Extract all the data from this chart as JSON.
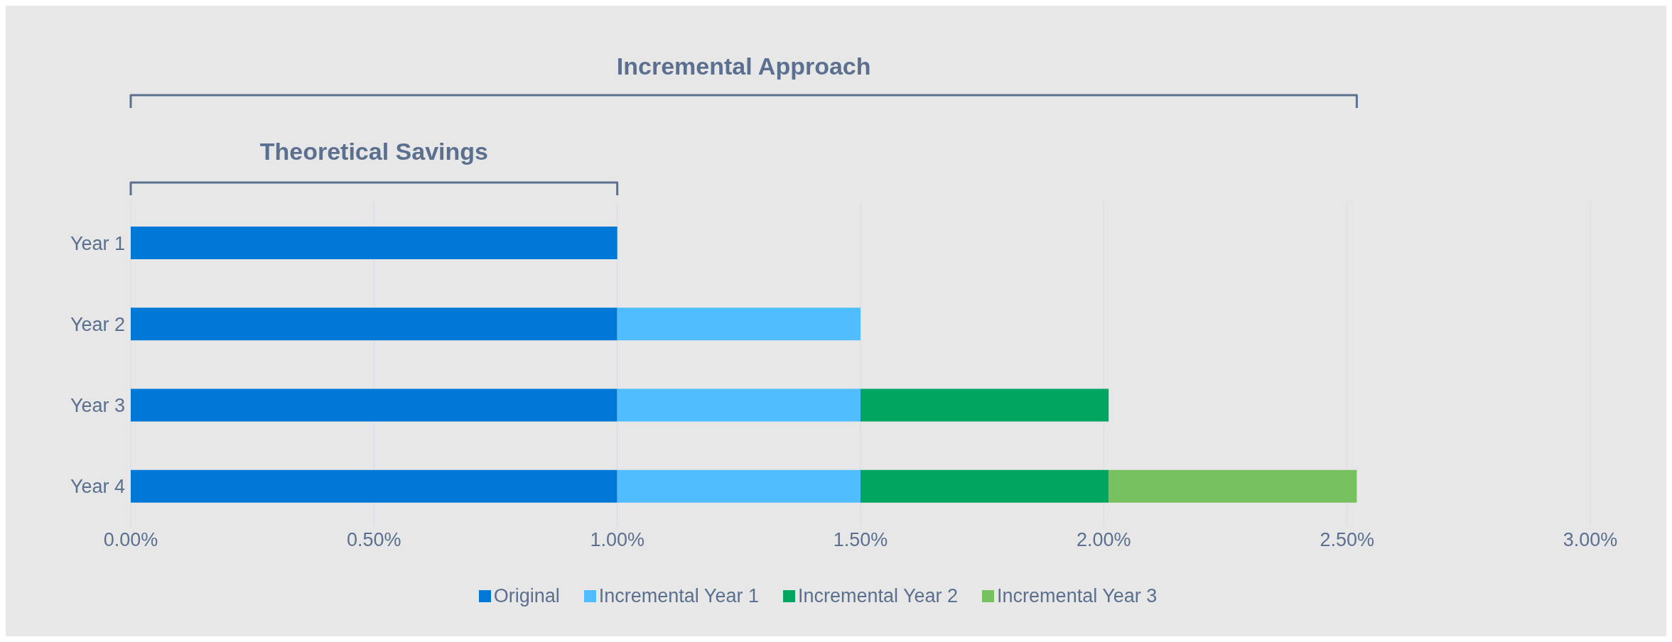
{
  "chart_data": {
    "type": "bar",
    "orientation": "horizontal",
    "stacked": true,
    "categories": [
      "Year 1",
      "Year 2",
      "Year 3",
      "Year 4"
    ],
    "series": [
      {
        "name": "Original",
        "color": "#0078d7",
        "values": [
          1.0,
          1.0,
          1.0,
          1.0
        ]
      },
      {
        "name": "Incremental Year 1",
        "color": "#4fbdff",
        "values": [
          null,
          0.5,
          0.5,
          0.5
        ]
      },
      {
        "name": "Incremental Year 2",
        "color": "#00a660",
        "values": [
          null,
          null,
          0.51,
          0.51
        ]
      },
      {
        "name": "Incremental Year 3",
        "color": "#77c060",
        "values": [
          null,
          null,
          null,
          0.51
        ]
      }
    ],
    "xlim": [
      0,
      3
    ],
    "xticks": [
      {
        "value": 0,
        "label": "0.00%"
      },
      {
        "value": 0.5,
        "label": "0.50%"
      },
      {
        "value": 1,
        "label": "1.00%"
      },
      {
        "value": 1.5,
        "label": "1.50%"
      },
      {
        "value": 2,
        "label": "2.00%"
      },
      {
        "value": 2.5,
        "label": "2.50%"
      },
      {
        "value": 3,
        "label": "3.00%"
      }
    ],
    "grid": "x",
    "legend": "bottom",
    "annotations": [
      "Incremental Approach",
      "Theoretical Savings"
    ]
  }
}
